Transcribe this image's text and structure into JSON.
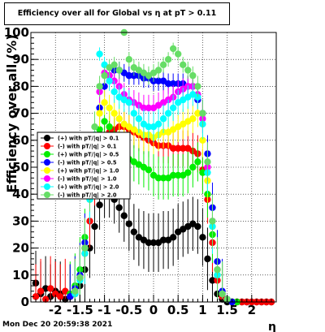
{
  "title": "Efficiency over all for Global vs   η at pT > 0.11",
  "timestamp": "Mon Dec 20 20:59:38 2021",
  "chart_data": {
    "type": "scatter",
    "xlabel": "η",
    "ylabel": "Efficiency over all (%)",
    "xlim": [
      -2.5,
      2.5
    ],
    "ylim": [
      0,
      100
    ],
    "x_ticks": [
      "-2",
      "-1.5",
      "-1",
      "-0.5",
      "0",
      "0.5",
      "1",
      "1.5",
      "2"
    ],
    "x_tick_values": [
      -2,
      -1.5,
      -1,
      -0.5,
      0,
      0.5,
      1,
      1.5,
      2
    ],
    "y_ticks": [
      "0",
      "10",
      "20",
      "30",
      "40",
      "50",
      "60",
      "70",
      "80",
      "90",
      "100"
    ],
    "y_tick_values": [
      0,
      10,
      20,
      30,
      40,
      50,
      60,
      70,
      80,
      90,
      100
    ],
    "grid": true,
    "legend_position": "left",
    "series": [
      {
        "name": "(+) with pT/|q| > 0.1",
        "color": "#000000",
        "x": [
          -2.4,
          -2.3,
          -2.2,
          -2.1,
          -2.0,
          -1.9,
          -1.8,
          -1.7,
          -1.6,
          -1.5,
          -1.4,
          -1.3,
          -1.2,
          -1.1,
          -1.0,
          -0.9,
          -0.8,
          -0.7,
          -0.6,
          -0.5,
          -0.4,
          -0.3,
          -0.2,
          -0.1,
          0.0,
          0.1,
          0.2,
          0.3,
          0.4,
          0.5,
          0.6,
          0.7,
          0.8,
          0.9,
          1.0,
          1.1,
          1.2,
          1.3,
          1.4,
          1.5,
          1.6,
          1.7,
          1.8,
          1.9,
          2.0,
          2.1,
          2.2,
          2.3,
          2.4
        ],
        "y": [
          7,
          3,
          5,
          2,
          4,
          3,
          1,
          2,
          3,
          6,
          12,
          20,
          28,
          36,
          40,
          40,
          38,
          35,
          32,
          29,
          26,
          24,
          23,
          22,
          22,
          22,
          23,
          23,
          24,
          26,
          27,
          28,
          29,
          28,
          24,
          16,
          8,
          3,
          1,
          0,
          0,
          0,
          0,
          0,
          0,
          0,
          0,
          0,
          0
        ]
      },
      {
        "name": "(-) with pT/|q| > 0.1",
        "color": "#ff0000",
        "x": [
          -2.4,
          -2.3,
          -2.2,
          -2.1,
          -2.0,
          -1.9,
          -1.8,
          -1.7,
          -1.6,
          -1.5,
          -1.4,
          -1.3,
          -1.2,
          -1.1,
          -1.0,
          -0.9,
          -0.8,
          -0.7,
          -0.6,
          -0.5,
          -0.4,
          -0.3,
          -0.2,
          -0.1,
          0.0,
          0.1,
          0.2,
          0.3,
          0.4,
          0.5,
          0.6,
          0.7,
          0.8,
          0.9,
          1.0,
          1.1,
          1.2,
          1.3,
          1.4,
          1.5,
          1.6,
          1.7,
          1.8,
          1.9,
          2.0,
          2.1,
          2.2,
          2.3,
          2.4
        ],
        "y": [
          2,
          4,
          1,
          5,
          3,
          2,
          4,
          2,
          4,
          9,
          18,
          30,
          44,
          55,
          60,
          63,
          64,
          65,
          65,
          64,
          63,
          62,
          61,
          60,
          59,
          58,
          58,
          58,
          57,
          57,
          57,
          57,
          56,
          55,
          49,
          38,
          22,
          8,
          2,
          1,
          0,
          0,
          0,
          0,
          0,
          0,
          0,
          0,
          0
        ]
      },
      {
        "name": "(+) with pT/|q| > 0.5",
        "color": "#00ee00",
        "x": [
          -1.7,
          -1.6,
          -1.5,
          -1.4,
          -1.3,
          -1.2,
          -1.1,
          -1.0,
          -0.9,
          -0.8,
          -0.7,
          -0.6,
          -0.5,
          -0.4,
          -0.3,
          -0.2,
          -0.1,
          0.0,
          0.1,
          0.2,
          0.3,
          0.4,
          0.5,
          0.6,
          0.7,
          0.8,
          0.9,
          1.0,
          1.1,
          1.2,
          1.3,
          1.4,
          1.5,
          1.6,
          1.7
        ],
        "y": [
          3,
          6,
          12,
          24,
          40,
          56,
          64,
          67,
          65,
          62,
          58,
          55,
          53,
          52,
          51,
          50,
          49,
          47,
          46,
          46,
          46,
          47,
          47,
          47,
          48,
          50,
          52,
          48,
          40,
          25,
          10,
          3,
          1,
          0,
          0
        ]
      },
      {
        "name": "(-) with pT/|q| > 0.5",
        "color": "#0000ff",
        "x": [
          -1.7,
          -1.6,
          -1.5,
          -1.4,
          -1.3,
          -1.2,
          -1.1,
          -1.0,
          -0.9,
          -0.8,
          -0.7,
          -0.6,
          -0.5,
          -0.4,
          -0.3,
          -0.2,
          -0.1,
          0.0,
          0.1,
          0.2,
          0.3,
          0.4,
          0.5,
          0.6,
          0.7,
          0.8,
          0.9,
          1.0,
          1.1,
          1.2,
          1.3,
          1.4,
          1.5,
          1.6
        ],
        "y": [
          2,
          5,
          10,
          22,
          40,
          58,
          72,
          80,
          84,
          86,
          86,
          85,
          84,
          84,
          84,
          83,
          83,
          82,
          82,
          82,
          81,
          81,
          81,
          81,
          80,
          80,
          75,
          70,
          55,
          35,
          15,
          4,
          1,
          0
        ]
      },
      {
        "name": "(+) with pT/|q| > 1.0",
        "color": "#ffff00",
        "x": [
          -1.6,
          -1.5,
          -1.4,
          -1.3,
          -1.2,
          -1.1,
          -1.0,
          -0.9,
          -0.8,
          -0.7,
          -0.6,
          -0.5,
          -0.4,
          -0.3,
          -0.2,
          -0.1,
          0.0,
          0.1,
          0.2,
          0.3,
          0.4,
          0.5,
          0.6,
          0.7,
          0.8,
          0.9,
          1.0,
          1.1,
          1.2,
          1.3,
          1.4,
          1.5
        ],
        "y": [
          4,
          9,
          20,
          38,
          58,
          70,
          74,
          72,
          70,
          68,
          66,
          65,
          64,
          63,
          62,
          62,
          61,
          62,
          63,
          63,
          64,
          65,
          66,
          67,
          68,
          70,
          60,
          45,
          28,
          12,
          3,
          1
        ]
      },
      {
        "name": "(-) with pT/|q| > 1.0",
        "color": "#ff00ff",
        "x": [
          -1.6,
          -1.5,
          -1.4,
          -1.3,
          -1.2,
          -1.1,
          -1.0,
          -0.9,
          -0.8,
          -0.7,
          -0.6,
          -0.5,
          -0.4,
          -0.3,
          -0.2,
          -0.1,
          0.0,
          0.1,
          0.2,
          0.3,
          0.4,
          0.5,
          0.6,
          0.7,
          0.8,
          0.9,
          1.0,
          1.1,
          1.2,
          1.3,
          1.4,
          1.5
        ],
        "y": [
          4,
          9,
          20,
          40,
          60,
          78,
          85,
          84,
          82,
          80,
          77,
          75,
          74,
          73,
          72,
          72,
          72,
          73,
          74,
          75,
          76,
          78,
          79,
          80,
          80,
          77,
          68,
          50,
          30,
          12,
          3,
          1
        ]
      },
      {
        "name": "(+) with pT/|q| > 2.0",
        "color": "#00ffff",
        "x": [
          -1.6,
          -1.5,
          -1.4,
          -1.3,
          -1.2,
          -1.1,
          -1.0,
          -0.9,
          -0.8,
          -0.7,
          -0.6,
          -0.5,
          -0.4,
          -0.3,
          -0.2,
          -0.1,
          0.0,
          0.1,
          0.2,
          0.3,
          0.4,
          0.5,
          0.6,
          0.7,
          0.8,
          0.9,
          1.0,
          1.1,
          1.2,
          1.3,
          1.4,
          1.5
        ],
        "y": [
          3,
          8,
          18,
          38,
          62,
          92,
          88,
          82,
          78,
          76,
          75,
          74,
          70,
          68,
          66,
          65,
          65,
          66,
          68,
          70,
          72,
          74,
          75,
          76,
          77,
          76,
          66,
          48,
          28,
          10,
          3,
          1
        ]
      },
      {
        "name": "(-) with pT/|q| > 2.0",
        "color": "#66dd66",
        "x": [
          -1.6,
          -1.5,
          -1.4,
          -1.3,
          -1.2,
          -1.1,
          -1.0,
          -0.9,
          -0.8,
          -0.7,
          -0.6,
          -0.5,
          -0.4,
          -0.3,
          -0.2,
          -0.1,
          0.0,
          0.1,
          0.2,
          0.3,
          0.4,
          0.5,
          0.6,
          0.7,
          0.8,
          0.9,
          1.0,
          1.1,
          1.2,
          1.3,
          1.4,
          1.5
        ],
        "y": [
          4,
          9,
          20,
          42,
          65,
          80,
          84,
          87,
          88,
          86,
          100,
          90,
          87,
          86,
          85,
          84,
          85,
          86,
          88,
          90,
          94,
          92,
          88,
          86,
          84,
          80,
          70,
          52,
          30,
          12,
          3,
          1
        ]
      }
    ]
  }
}
